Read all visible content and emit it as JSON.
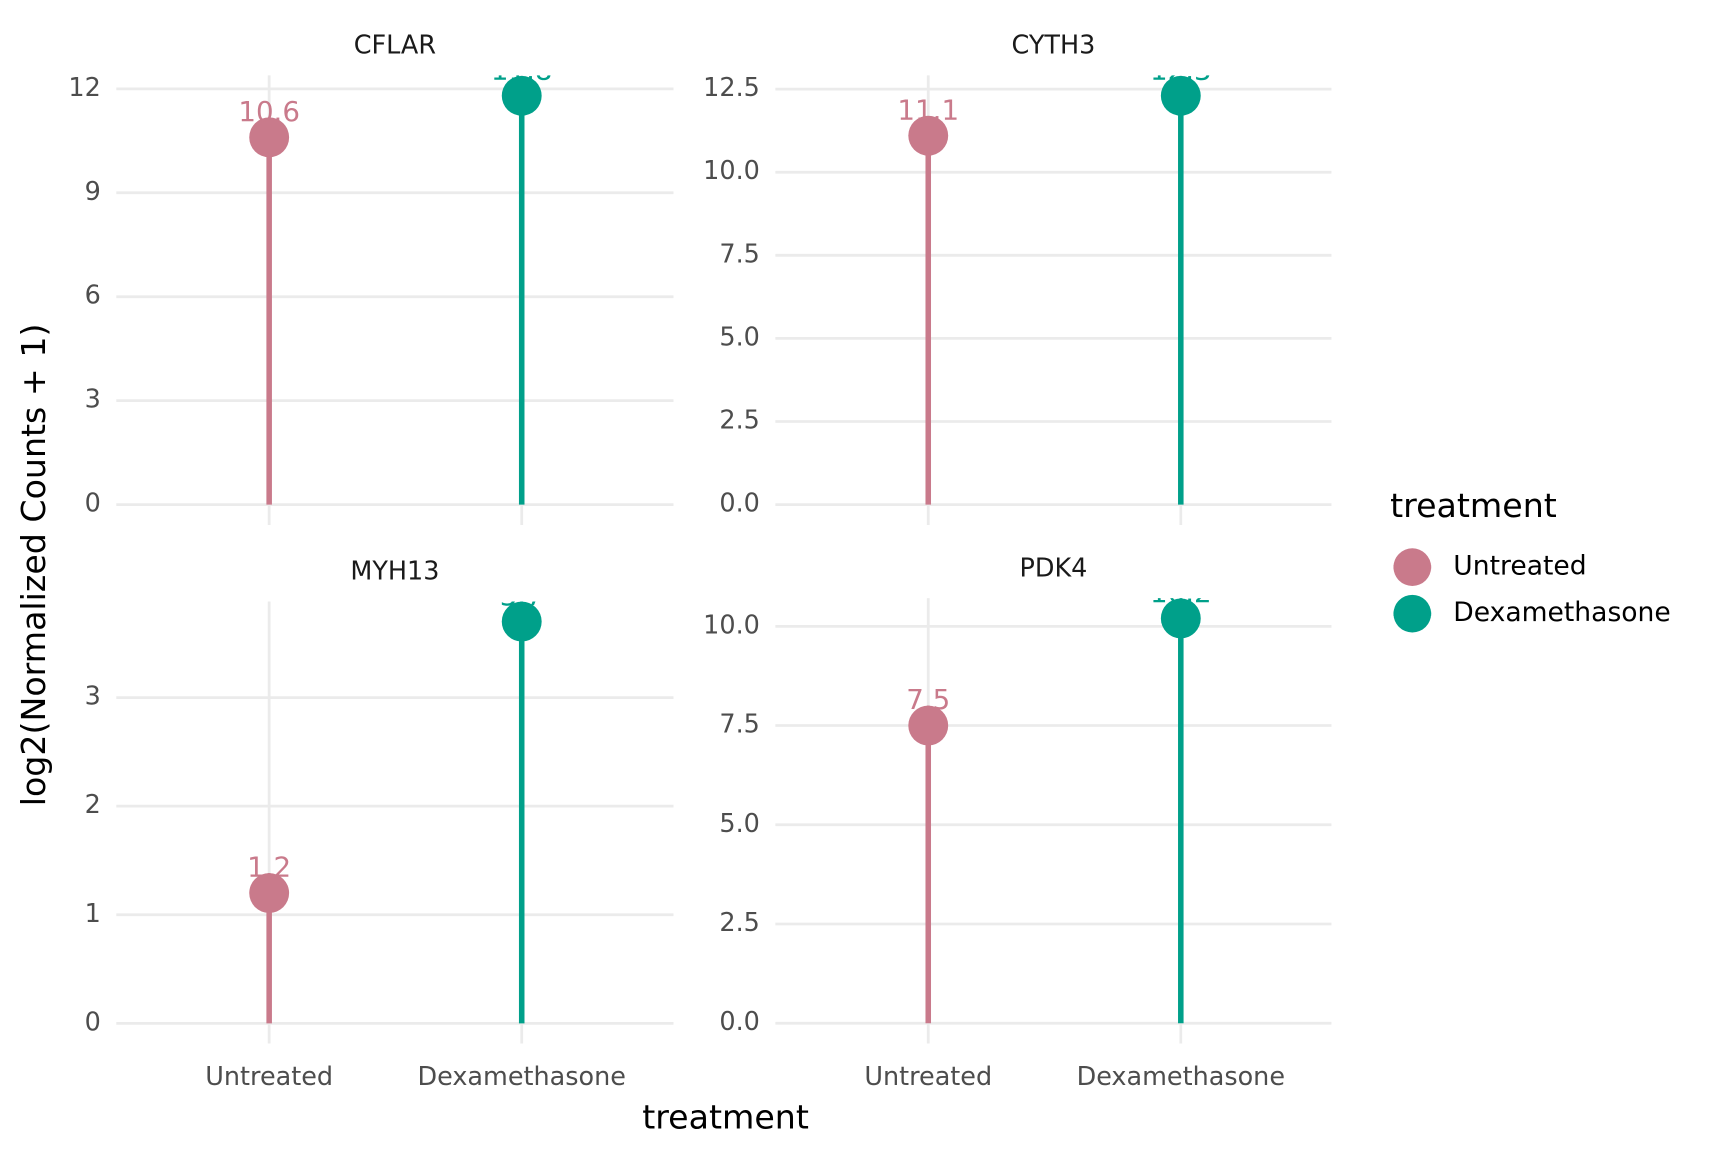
{
  "chart_data": [
    {
      "type": "lollipop",
      "title": "CFLAR",
      "values": [
        10.6,
        11.8
      ],
      "ylim": [
        -0.59,
        12.39
      ],
      "yticks": [
        0,
        3,
        6,
        9,
        12
      ],
      "grid": true
    },
    {
      "type": "lollipop",
      "title": "CYTH3",
      "values": [
        11.1,
        12.3
      ],
      "ylim": [
        -0.615,
        12.915
      ],
      "yticks": [
        {
          "value": 0,
          "label": "0.0"
        },
        {
          "value": 2.5,
          "label": "2.5"
        },
        {
          "value": 5,
          "label": "5.0"
        },
        {
          "value": 7.5,
          "label": "7.5"
        },
        {
          "value": 10,
          "label": "10.0"
        },
        {
          "value": 12.5,
          "label": "12.5"
        }
      ],
      "grid": true
    },
    {
      "type": "lollipop",
      "title": "MYH13",
      "categories": [
        "Untreated",
        "Dexamethasone"
      ],
      "values": [
        1.2,
        3.7
      ],
      "ylim": [
        -0.185,
        3.885
      ],
      "yticks": [
        0,
        1,
        2,
        3
      ],
      "grid": true
    },
    {
      "type": "lollipop",
      "title": "PDK4",
      "categories": [
        "Untreated",
        "Dexamethasone"
      ],
      "values": [
        7.5,
        10.2
      ],
      "ylim": [
        -0.51,
        10.71
      ],
      "yticks": [
        {
          "value": 0,
          "label": "0.0"
        },
        {
          "value": 2.5,
          "label": "2.5"
        },
        {
          "value": 5,
          "label": "5.0"
        },
        {
          "value": 7.5,
          "label": "7.5"
        },
        {
          "value": 10,
          "label": "10.0"
        }
      ],
      "grid": true
    }
  ],
  "x_label": "treatment",
  "y_label": "log2(Normalized Counts + 1)",
  "legend": {
    "title": "treatment",
    "position": "right",
    "items": [
      {
        "name": "Untreated",
        "color": "#c97a8b"
      },
      {
        "name": "Dexamethasone",
        "color": "#00a08a"
      }
    ]
  }
}
